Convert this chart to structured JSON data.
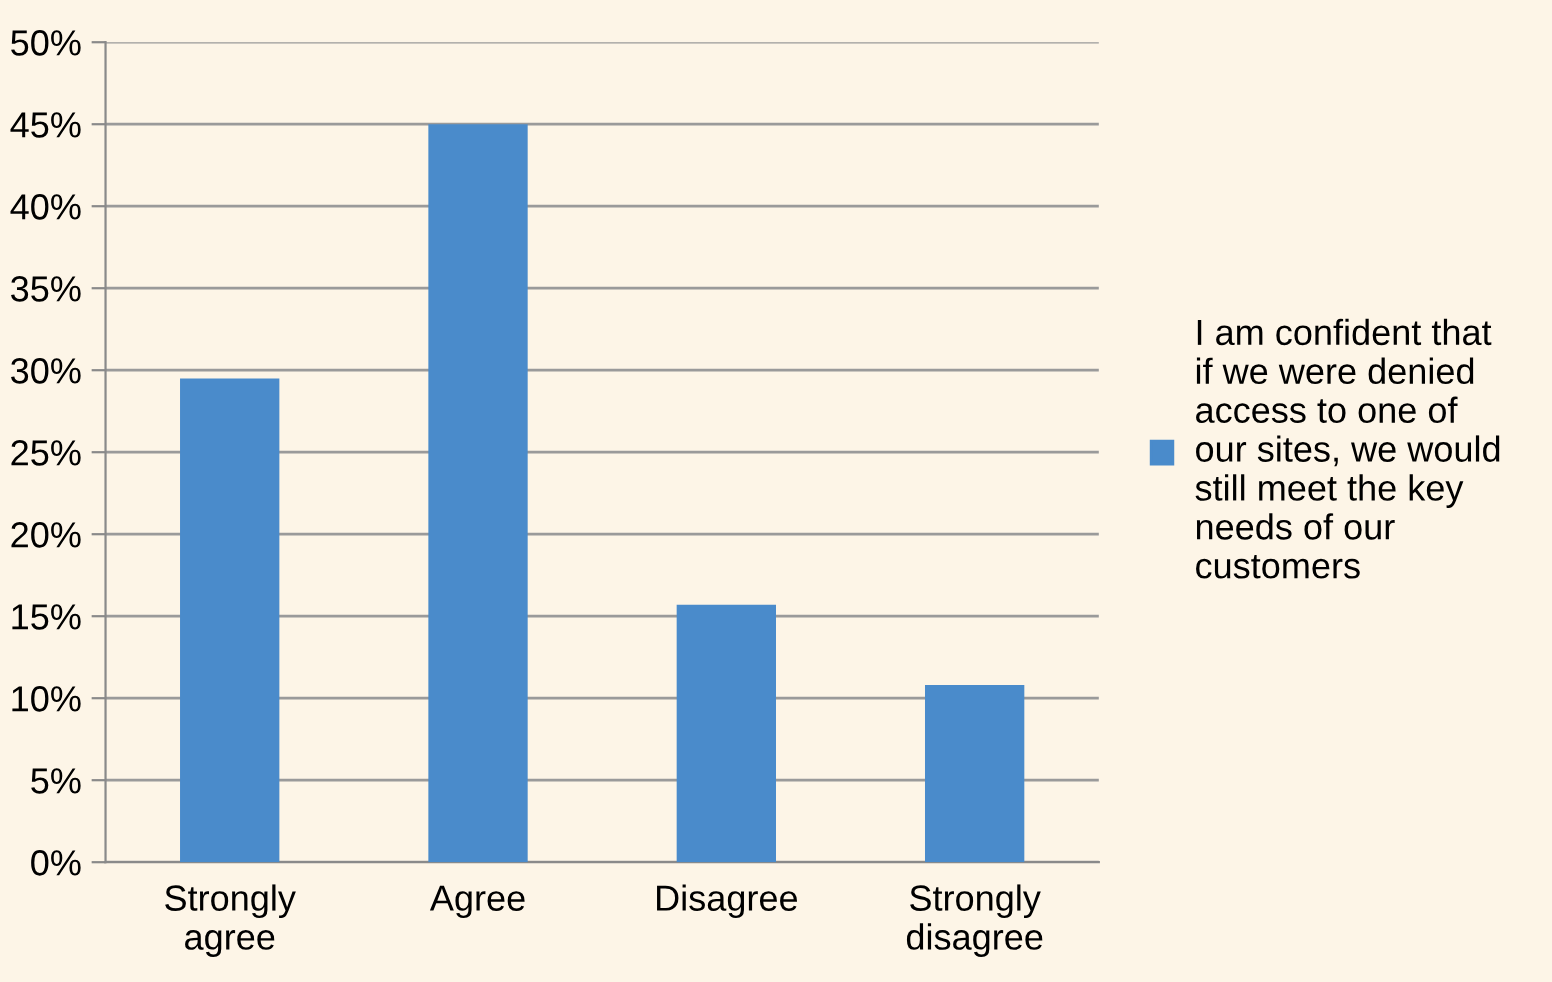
{
  "chart_data": {
    "type": "bar",
    "categories": [
      "Strongly\nagree",
      "Agree",
      "Disagree",
      "Strongly\ndisagree"
    ],
    "series": [
      {
        "name": "I am confident that\nif we were denied\naccess to one of\nour sites, we would\nstill meet the key\nneeds of our\ncustomers",
        "color": "#4a8bcb",
        "values": [
          29.5,
          45.0,
          15.7,
          10.8
        ]
      }
    ],
    "ylim": [
      0,
      50
    ],
    "yticks": [
      {
        "value": 0,
        "label": "0%"
      },
      {
        "value": 5,
        "label": "5%"
      },
      {
        "value": 10,
        "label": "10%"
      },
      {
        "value": 15,
        "label": "15%"
      },
      {
        "value": 20,
        "label": "20%"
      },
      {
        "value": 25,
        "label": "25%"
      },
      {
        "value": 30,
        "label": "30%"
      },
      {
        "value": 35,
        "label": "35%"
      },
      {
        "value": 40,
        "label": "40%"
      },
      {
        "value": 45,
        "label": "45%"
      },
      {
        "value": 50,
        "label": "50%"
      }
    ],
    "grid": "y",
    "legend": "right"
  }
}
